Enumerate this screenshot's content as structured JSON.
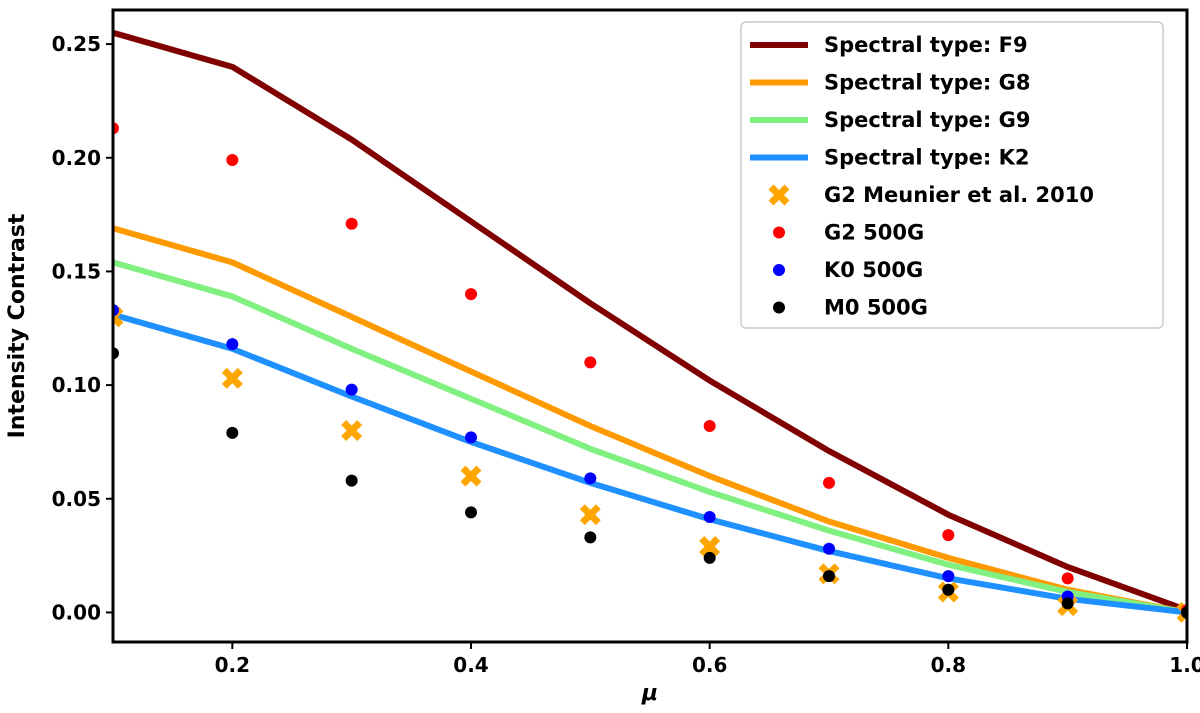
{
  "chart_data": {
    "type": "line",
    "title": "",
    "xlabel": "μ",
    "ylabel": "Intensity Contrast",
    "xlim": [
      0.1,
      1.0
    ],
    "ylim": [
      -0.013,
      0.265
    ],
    "xticks": [
      0.2,
      0.4,
      0.6,
      0.8,
      1.0
    ],
    "xtick_labels": [
      "0.2",
      "0.4",
      "0.6",
      "0.8",
      "1.0"
    ],
    "yticks": [
      0.0,
      0.05,
      0.1,
      0.15,
      0.2,
      0.25
    ],
    "ytick_labels": [
      "0.00",
      "0.05",
      "0.10",
      "0.15",
      "0.20",
      "0.25"
    ],
    "grid": false,
    "legend_position": "top-right",
    "x": [
      0.1,
      0.2,
      0.3,
      0.4,
      0.5,
      0.6,
      0.7,
      0.8,
      0.9,
      1.0
    ],
    "series": [
      {
        "name": "Spectral type: F9",
        "kind": "line",
        "color": "#800000",
        "values": [
          0.255,
          0.24,
          0.208,
          0.172,
          0.136,
          0.102,
          0.071,
          0.043,
          0.02,
          0.001
        ]
      },
      {
        "name": "Spectral type: G8",
        "kind": "line",
        "color": "#ff9900",
        "values": [
          0.169,
          0.154,
          0.13,
          0.106,
          0.082,
          0.06,
          0.04,
          0.024,
          0.01,
          0.0
        ]
      },
      {
        "name": "Spectral type: G9",
        "kind": "line",
        "color": "#80f080",
        "values": [
          0.154,
          0.139,
          0.116,
          0.094,
          0.072,
          0.053,
          0.036,
          0.021,
          0.009,
          0.0
        ]
      },
      {
        "name": "Spectral type: K2",
        "kind": "line",
        "color": "#1e90ff",
        "values": [
          0.131,
          0.116,
          0.095,
          0.075,
          0.057,
          0.041,
          0.027,
          0.015,
          0.006,
          0.0
        ]
      },
      {
        "name": "G2 Meunier et al. 2010",
        "kind": "cross",
        "color": "#ffa500",
        "values": [
          0.13,
          0.103,
          0.08,
          0.06,
          0.043,
          0.029,
          0.017,
          0.009,
          0.003,
          0.0
        ]
      },
      {
        "name": "G2 500G",
        "kind": "dot",
        "color": "#ff0000",
        "values": [
          0.213,
          0.199,
          0.171,
          0.14,
          0.11,
          0.082,
          0.057,
          0.034,
          0.015,
          0.001
        ]
      },
      {
        "name": "K0 500G",
        "kind": "dot",
        "color": "#0000ff",
        "values": [
          0.133,
          0.118,
          0.098,
          0.077,
          0.059,
          0.042,
          0.028,
          0.016,
          0.007,
          0.0
        ]
      },
      {
        "name": "M0 500G",
        "kind": "dot",
        "color": "#000000",
        "values": [
          0.114,
          0.079,
          0.058,
          0.044,
          0.033,
          0.024,
          0.016,
          0.01,
          0.004,
          0.0
        ]
      }
    ]
  }
}
